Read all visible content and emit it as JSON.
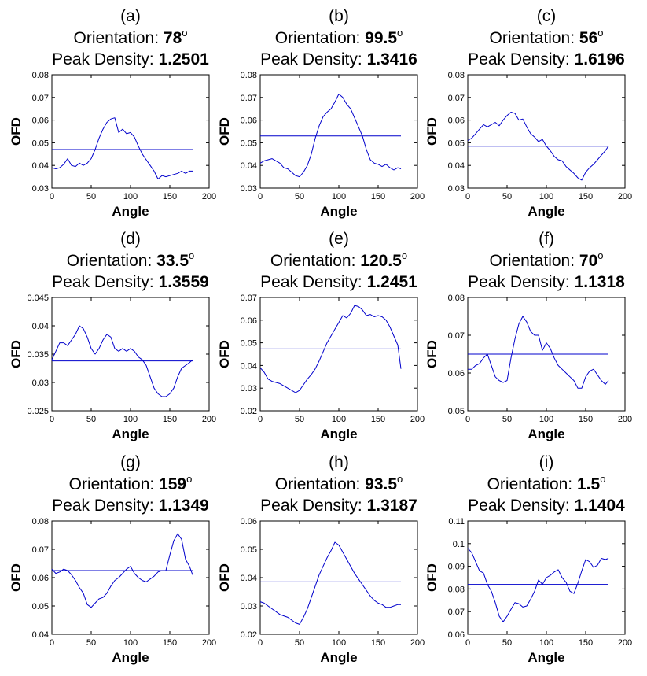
{
  "figure": {
    "line_color": "#0000cc",
    "axis_color": "#000000"
  },
  "chart_data": [
    {
      "type": "line",
      "label": "(a)",
      "orientation_label": "Orientation: ",
      "orientation": "78",
      "degree": "o",
      "density_label": "Peak Density: ",
      "peak_density": "1.2501",
      "xlabel": "Angle",
      "ylabel": "OFD",
      "xlim": [
        0,
        200
      ],
      "xticks": [
        "0",
        "50",
        "100",
        "150",
        "200"
      ],
      "ylim": [
        0.03,
        0.08
      ],
      "yticks": [
        "0.03",
        "0.04",
        "0.05",
        "0.06",
        "0.07",
        "0.08"
      ],
      "mean_line": 0.047,
      "x": [
        0,
        5,
        10,
        15,
        20,
        25,
        30,
        35,
        40,
        45,
        50,
        55,
        60,
        65,
        70,
        75,
        80,
        85,
        90,
        95,
        100,
        105,
        110,
        115,
        120,
        125,
        130,
        135,
        140,
        145,
        150,
        155,
        160,
        165,
        170,
        175,
        179
      ],
      "y": [
        0.039,
        0.0385,
        0.039,
        0.0405,
        0.043,
        0.04,
        0.0395,
        0.041,
        0.04,
        0.041,
        0.043,
        0.047,
        0.052,
        0.056,
        0.059,
        0.0605,
        0.061,
        0.0545,
        0.056,
        0.054,
        0.0545,
        0.0525,
        0.0485,
        0.045,
        0.0425,
        0.04,
        0.0375,
        0.034,
        0.0355,
        0.035,
        0.0355,
        0.036,
        0.0365,
        0.0375,
        0.0365,
        0.0375,
        0.0375
      ]
    },
    {
      "type": "line",
      "label": "(b)",
      "orientation_label": "Orientation: ",
      "orientation": "99.5",
      "degree": "o",
      "density_label": "Peak Density: ",
      "peak_density": "1.3416",
      "xlabel": "Angle",
      "ylabel": "OFD",
      "xlim": [
        0,
        200
      ],
      "xticks": [
        "0",
        "50",
        "100",
        "150",
        "200"
      ],
      "ylim": [
        0.03,
        0.08
      ],
      "yticks": [
        "0.03",
        "0.04",
        "0.05",
        "0.06",
        "0.07",
        "0.08"
      ],
      "mean_line": 0.053,
      "x": [
        0,
        5,
        10,
        15,
        20,
        25,
        30,
        35,
        40,
        45,
        50,
        55,
        60,
        65,
        70,
        75,
        80,
        85,
        90,
        95,
        100,
        105,
        110,
        115,
        120,
        125,
        130,
        135,
        140,
        145,
        150,
        155,
        160,
        165,
        170,
        175,
        179
      ],
      "y": [
        0.041,
        0.042,
        0.0425,
        0.043,
        0.042,
        0.041,
        0.039,
        0.0385,
        0.037,
        0.0355,
        0.035,
        0.037,
        0.04,
        0.045,
        0.052,
        0.0575,
        0.0615,
        0.0635,
        0.065,
        0.068,
        0.0715,
        0.07,
        0.067,
        0.065,
        0.061,
        0.057,
        0.053,
        0.047,
        0.0425,
        0.041,
        0.0405,
        0.0395,
        0.0405,
        0.039,
        0.038,
        0.039,
        0.0385
      ]
    },
    {
      "type": "line",
      "label": "(c)",
      "orientation_label": "Orientation: ",
      "orientation": "56",
      "degree": "o",
      "density_label": "Peak Density: ",
      "peak_density": "1.6196",
      "xlabel": "Angle",
      "ylabel": "OFD",
      "xlim": [
        0,
        200
      ],
      "xticks": [
        "0",
        "50",
        "100",
        "150",
        "200"
      ],
      "ylim": [
        0.03,
        0.08
      ],
      "yticks": [
        "0.03",
        "0.04",
        "0.05",
        "0.06",
        "0.07",
        "0.08"
      ],
      "mean_line": 0.0485,
      "x": [
        0,
        5,
        10,
        15,
        20,
        25,
        30,
        35,
        40,
        45,
        50,
        55,
        60,
        65,
        70,
        75,
        80,
        85,
        90,
        95,
        100,
        105,
        110,
        115,
        120,
        125,
        130,
        135,
        140,
        145,
        150,
        155,
        160,
        165,
        170,
        175,
        179
      ],
      "y": [
        0.051,
        0.052,
        0.054,
        0.056,
        0.058,
        0.057,
        0.058,
        0.059,
        0.0575,
        0.06,
        0.062,
        0.0635,
        0.063,
        0.06,
        0.0605,
        0.057,
        0.054,
        0.0525,
        0.0505,
        0.0515,
        0.0485,
        0.0465,
        0.044,
        0.0425,
        0.042,
        0.0395,
        0.038,
        0.0365,
        0.0345,
        0.0335,
        0.037,
        0.039,
        0.0405,
        0.0425,
        0.0445,
        0.0465,
        0.0485
      ]
    },
    {
      "type": "line",
      "label": "(d)",
      "orientation_label": "Orientation: ",
      "orientation": "33.5",
      "degree": "o",
      "density_label": "Peak Density: ",
      "peak_density": "1.3559",
      "xlabel": "Angle",
      "ylabel": "OFD",
      "xlim": [
        0,
        200
      ],
      "xticks": [
        "0",
        "50",
        "100",
        "150",
        "200"
      ],
      "ylim": [
        0.025,
        0.045
      ],
      "yticks": [
        "0.025",
        "0.03",
        "0.035",
        "0.04",
        "0.045"
      ],
      "mean_line": 0.0338,
      "x": [
        0,
        5,
        10,
        15,
        20,
        25,
        30,
        35,
        40,
        45,
        50,
        55,
        60,
        65,
        70,
        75,
        80,
        85,
        90,
        95,
        100,
        105,
        110,
        115,
        120,
        125,
        130,
        135,
        140,
        145,
        150,
        155,
        160,
        165,
        170,
        175,
        179
      ],
      "y": [
        0.034,
        0.0355,
        0.037,
        0.037,
        0.0365,
        0.0375,
        0.0385,
        0.04,
        0.0395,
        0.038,
        0.036,
        0.035,
        0.036,
        0.0375,
        0.0385,
        0.038,
        0.036,
        0.0355,
        0.036,
        0.0355,
        0.036,
        0.0355,
        0.0345,
        0.034,
        0.033,
        0.031,
        0.029,
        0.028,
        0.0275,
        0.0275,
        0.028,
        0.029,
        0.031,
        0.0325,
        0.033,
        0.0335,
        0.034
      ]
    },
    {
      "type": "line",
      "label": "(e)",
      "orientation_label": "Orientation: ",
      "orientation": "120.5",
      "degree": "o",
      "density_label": "Peak Density: ",
      "peak_density": "1.2451",
      "xlabel": "Angle",
      "ylabel": "OFD",
      "xlim": [
        0,
        200
      ],
      "xticks": [
        "0",
        "50",
        "100",
        "150",
        "200"
      ],
      "ylim": [
        0.02,
        0.07
      ],
      "yticks": [
        "0.02",
        "0.03",
        "0.04",
        "0.05",
        "0.06",
        "0.07"
      ],
      "mean_line": 0.0473,
      "x": [
        0,
        5,
        10,
        15,
        20,
        25,
        30,
        35,
        40,
        45,
        50,
        55,
        60,
        65,
        70,
        75,
        80,
        85,
        90,
        95,
        100,
        105,
        110,
        115,
        120,
        125,
        130,
        135,
        140,
        145,
        150,
        155,
        160,
        165,
        170,
        175,
        179
      ],
      "y": [
        0.039,
        0.037,
        0.034,
        0.033,
        0.0325,
        0.032,
        0.031,
        0.03,
        0.029,
        0.028,
        0.029,
        0.0315,
        0.034,
        0.036,
        0.0385,
        0.042,
        0.046,
        0.05,
        0.053,
        0.056,
        0.059,
        0.062,
        0.061,
        0.063,
        0.0665,
        0.066,
        0.0645,
        0.062,
        0.0625,
        0.0615,
        0.062,
        0.0615,
        0.06,
        0.057,
        0.053,
        0.049,
        0.0385
      ]
    },
    {
      "type": "line",
      "label": "(f)",
      "orientation_label": "Orientation: ",
      "orientation": "70",
      "degree": "o",
      "density_label": "Peak Density: ",
      "peak_density": "1.1318",
      "xlabel": "Angle",
      "ylabel": "OFD",
      "xlim": [
        0,
        200
      ],
      "xticks": [
        "0",
        "50",
        "100",
        "150",
        "200"
      ],
      "ylim": [
        0.05,
        0.08
      ],
      "yticks": [
        "0.05",
        "0.06",
        "0.07",
        "0.08"
      ],
      "mean_line": 0.065,
      "x": [
        0,
        5,
        10,
        15,
        20,
        25,
        30,
        35,
        40,
        45,
        50,
        55,
        60,
        65,
        70,
        75,
        80,
        85,
        90,
        95,
        100,
        105,
        110,
        115,
        120,
        125,
        130,
        135,
        140,
        145,
        150,
        155,
        160,
        165,
        170,
        175,
        179
      ],
      "y": [
        0.061,
        0.061,
        0.062,
        0.0625,
        0.064,
        0.065,
        0.062,
        0.059,
        0.058,
        0.0575,
        0.058,
        0.064,
        0.069,
        0.073,
        0.075,
        0.0735,
        0.071,
        0.07,
        0.07,
        0.066,
        0.068,
        0.0665,
        0.064,
        0.062,
        0.061,
        0.06,
        0.059,
        0.058,
        0.056,
        0.056,
        0.059,
        0.0605,
        0.061,
        0.0595,
        0.058,
        0.057,
        0.058
      ]
    },
    {
      "type": "line",
      "label": "(g)",
      "orientation_label": "Orientation: ",
      "orientation": "159",
      "degree": "o",
      "density_label": "Peak Density: ",
      "peak_density": "1.1349",
      "xlabel": "Angle",
      "ylabel": "OFD",
      "xlim": [
        0,
        200
      ],
      "xticks": [
        "0",
        "50",
        "100",
        "150",
        "200"
      ],
      "ylim": [
        0.04,
        0.08
      ],
      "yticks": [
        "0.04",
        "0.05",
        "0.06",
        "0.07",
        "0.08"
      ],
      "mean_line": 0.0625,
      "x": [
        0,
        5,
        10,
        15,
        20,
        25,
        30,
        35,
        40,
        45,
        50,
        55,
        60,
        65,
        70,
        75,
        80,
        85,
        90,
        95,
        100,
        105,
        110,
        115,
        120,
        125,
        130,
        135,
        140,
        145,
        150,
        155,
        160,
        165,
        170,
        175,
        179
      ],
      "y": [
        0.063,
        0.0615,
        0.062,
        0.063,
        0.0625,
        0.061,
        0.059,
        0.0565,
        0.0545,
        0.0505,
        0.0495,
        0.051,
        0.0525,
        0.053,
        0.0545,
        0.057,
        0.059,
        0.06,
        0.0615,
        0.063,
        0.064,
        0.0615,
        0.06,
        0.059,
        0.0585,
        0.0595,
        0.0605,
        0.062,
        0.0625,
        0.0625,
        0.068,
        0.073,
        0.0755,
        0.0735,
        0.0665,
        0.064,
        0.061
      ]
    },
    {
      "type": "line",
      "label": "(h)",
      "orientation_label": "Orientation: ",
      "orientation": "93.5",
      "degree": "o",
      "density_label": "Peak Density: ",
      "peak_density": "1.3187",
      "xlabel": "Angle",
      "ylabel": "OFD",
      "xlim": [
        0,
        200
      ],
      "xticks": [
        "0",
        "50",
        "100",
        "150",
        "200"
      ],
      "ylim": [
        0.02,
        0.06
      ],
      "yticks": [
        "0.02",
        "0.03",
        "0.04",
        "0.05",
        "0.06"
      ],
      "mean_line": 0.0385,
      "x": [
        0,
        5,
        10,
        15,
        20,
        25,
        30,
        35,
        40,
        45,
        50,
        55,
        60,
        65,
        70,
        75,
        80,
        85,
        90,
        95,
        100,
        105,
        110,
        115,
        120,
        125,
        130,
        135,
        140,
        145,
        150,
        155,
        160,
        165,
        170,
        175,
        179
      ],
      "y": [
        0.0315,
        0.031,
        0.03,
        0.029,
        0.028,
        0.027,
        0.0265,
        0.026,
        0.025,
        0.024,
        0.0235,
        0.026,
        0.029,
        0.033,
        0.037,
        0.041,
        0.044,
        0.047,
        0.0495,
        0.0525,
        0.0515,
        0.049,
        0.0465,
        0.044,
        0.0415,
        0.0395,
        0.0375,
        0.0355,
        0.0335,
        0.032,
        0.031,
        0.0305,
        0.0295,
        0.0295,
        0.03,
        0.0305,
        0.0305
      ]
    },
    {
      "type": "line",
      "label": "(i)",
      "orientation_label": "Orientation: ",
      "orientation": "1.5",
      "degree": "o",
      "density_label": "Peak Density: ",
      "peak_density": "1.1404",
      "xlabel": "Angle",
      "ylabel": "OFD",
      "xlim": [
        0,
        200
      ],
      "xticks": [
        "0",
        "50",
        "100",
        "150",
        "200"
      ],
      "ylim": [
        0.06,
        0.11
      ],
      "yticks": [
        "0.06",
        "0.07",
        "0.08",
        "0.09",
        "0.1",
        "0.11"
      ],
      "mean_line": 0.082,
      "x": [
        0,
        5,
        10,
        15,
        20,
        25,
        30,
        35,
        40,
        45,
        50,
        55,
        60,
        65,
        70,
        75,
        80,
        85,
        90,
        95,
        100,
        105,
        110,
        115,
        120,
        125,
        130,
        135,
        140,
        145,
        150,
        155,
        160,
        165,
        170,
        175,
        179
      ],
      "y": [
        0.098,
        0.096,
        0.092,
        0.088,
        0.087,
        0.082,
        0.079,
        0.074,
        0.068,
        0.0655,
        0.068,
        0.071,
        0.074,
        0.0735,
        0.072,
        0.0725,
        0.0755,
        0.079,
        0.084,
        0.082,
        0.085,
        0.086,
        0.0875,
        0.0885,
        0.085,
        0.083,
        0.079,
        0.078,
        0.0825,
        0.088,
        0.093,
        0.092,
        0.0895,
        0.0905,
        0.0935,
        0.093,
        0.0935
      ]
    }
  ]
}
